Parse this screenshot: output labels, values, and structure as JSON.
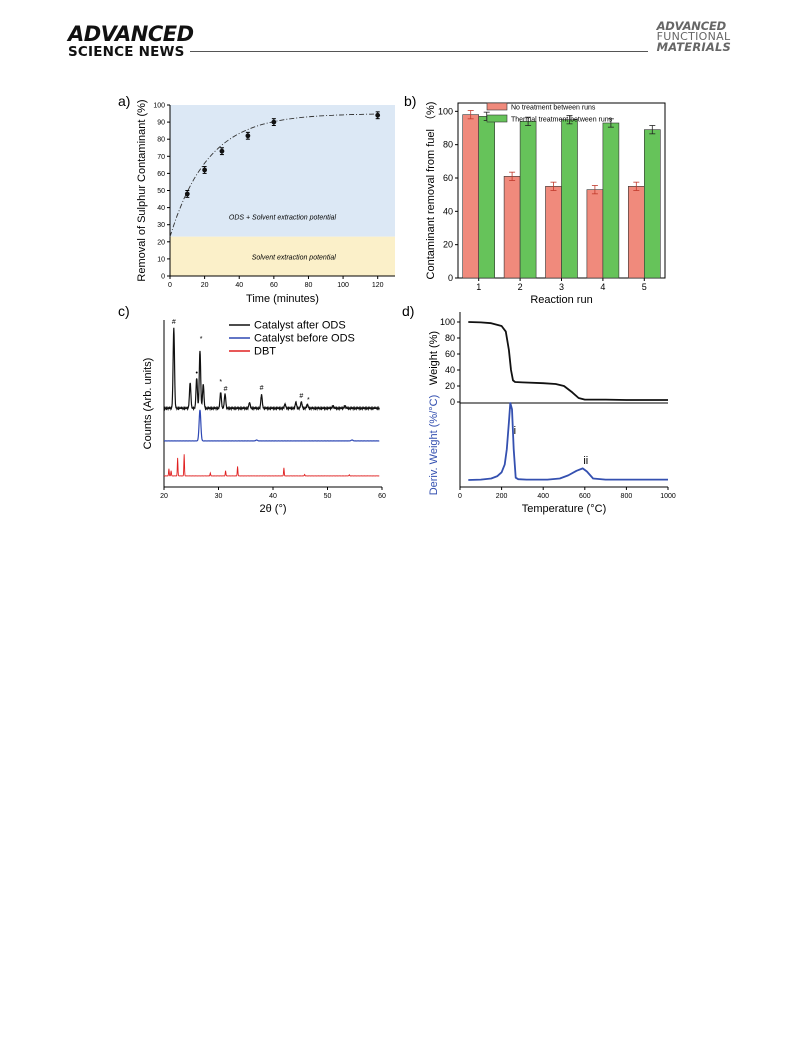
{
  "header": {
    "journal_left_line1": "ADVANCED",
    "journal_left_line2": "SCIENCE NEWS",
    "journal_right_line1": "ADVANCED",
    "journal_right_line2": "FUNCTIONAL",
    "journal_right_line3": "MATERIALS"
  },
  "chart_data": [
    {
      "panel": "a)",
      "type": "scatter",
      "xlabel": "Time (minutes)",
      "ylabel": "Removal of Sulphur Contaminant (%)",
      "xlim": [
        0,
        130
      ],
      "ylim": [
        0,
        100
      ],
      "xticks": [
        0,
        20,
        40,
        60,
        80,
        100,
        120
      ],
      "yticks": [
        0,
        10,
        20,
        30,
        40,
        50,
        60,
        70,
        80,
        90,
        100
      ],
      "x": [
        10,
        20,
        30,
        45,
        60,
        120
      ],
      "y": [
        48,
        62,
        73,
        82,
        90,
        94
      ],
      "err": [
        2,
        2,
        2,
        2,
        2,
        2
      ],
      "fit_curve": "dash-dot",
      "regions": [
        {
          "label": "ODS + Solvent extraction potential",
          "y_from": 23,
          "y_to": 100,
          "color": "#dce8f5"
        },
        {
          "label": "Solvent extraction potential",
          "y_from": 0,
          "y_to": 23,
          "color": "#fbf0c9"
        }
      ]
    },
    {
      "panel": "b)",
      "type": "bar",
      "xlabel": "Reaction run",
      "ylabel": "Contaminant removal from fuel （%)",
      "categories": [
        "1",
        "2",
        "3",
        "4",
        "5"
      ],
      "ylim": [
        0,
        105
      ],
      "yticks": [
        0,
        20,
        40,
        60,
        80,
        100
      ],
      "series": [
        {
          "name": "No treatment between runs",
          "color": "#f08a7c",
          "values": [
            98,
            61,
            55,
            53,
            55
          ],
          "err": [
            2.5,
            2.5,
            2.5,
            2.5,
            2.5
          ]
        },
        {
          "name": "Thermal treatment between runs",
          "color": "#66c35a",
          "values": [
            97,
            94,
            95,
            93,
            89
          ],
          "err": [
            2.5,
            2.5,
            2.5,
            2.5,
            2.5
          ]
        }
      ],
      "legend": "top"
    },
    {
      "panel": "c)",
      "type": "line",
      "xlabel": "2θ (°)",
      "ylabel": "Counts (Arb. units)",
      "xlim": [
        20,
        60
      ],
      "xticks": [
        20,
        30,
        40,
        50,
        60
      ],
      "series": [
        {
          "name": "Catalyst after ODS",
          "color": "#111111",
          "peaks": [
            [
              21.8,
              1.0
            ],
            [
              24.8,
              0.32
            ],
            [
              26.0,
              0.38
            ],
            [
              26.6,
              0.72
            ],
            [
              27.2,
              0.3
            ],
            [
              30.4,
              0.2
            ],
            [
              31.2,
              0.18
            ],
            [
              35.7,
              0.07
            ],
            [
              37.9,
              0.17
            ],
            [
              42.2,
              0.05
            ],
            [
              44.2,
              0.07
            ],
            [
              45.2,
              0.08
            ],
            [
              46.3,
              0.05
            ],
            [
              51.0,
              0.03
            ],
            [
              53.2,
              0.03
            ]
          ]
        },
        {
          "name": "Catalyst before ODS",
          "color": "#2e48b4",
          "peaks": [
            [
              26.6,
              1.0
            ],
            [
              37.0,
              0.03
            ],
            [
              54.5,
              0.03
            ]
          ]
        },
        {
          "name": "DBT",
          "color": "#e02020",
          "peaks": [
            [
              20.9,
              0.25
            ],
            [
              21.3,
              0.18
            ],
            [
              22.5,
              0.62
            ],
            [
              23.7,
              0.75
            ],
            [
              28.5,
              0.1
            ],
            [
              31.3,
              0.18
            ],
            [
              33.5,
              0.33
            ],
            [
              42.0,
              0.28
            ],
            [
              45.8,
              0.05
            ],
            [
              54.0,
              0.04
            ]
          ]
        }
      ],
      "annotations": [
        {
          "text": "#",
          "x": 21.8
        },
        {
          "text": "*",
          "x": 26.8
        },
        {
          "text": "•",
          "x": 26.0
        },
        {
          "text": "*",
          "x": 30.4
        },
        {
          "text": "#",
          "x": 31.3
        },
        {
          "text": "#",
          "x": 37.9
        },
        {
          "text": "#",
          "x": 45.2
        },
        {
          "text": "*",
          "x": 46.5
        }
      ],
      "legend": "top-right"
    },
    {
      "panel": "d)",
      "type": "line",
      "xlabel": "Temperature (°C)",
      "ylabel_top": "Weight (%)",
      "ylabel_bottom": "Deriv. Weight (%/°C)",
      "xlim": [
        0,
        1000
      ],
      "xticks": [
        0,
        200,
        400,
        600,
        800,
        1000
      ],
      "yticks_top": [
        0,
        20,
        40,
        60,
        80,
        100
      ],
      "series": [
        {
          "name": "Weight",
          "color": "#111111",
          "x": [
            40,
            100,
            150,
            200,
            220,
            235,
            245,
            255,
            265,
            300,
            400,
            460,
            500,
            540,
            570,
            600,
            700,
            800,
            1000
          ],
          "y": [
            100,
            99.5,
            98.5,
            95,
            88,
            65,
            40,
            27,
            25,
            24.5,
            23.5,
            22.5,
            20,
            12,
            5,
            3,
            3,
            2.5,
            2.5
          ]
        },
        {
          "name": "Deriv. Weight",
          "color": "#3450b0",
          "x": [
            40,
            100,
            150,
            180,
            200,
            215,
            225,
            235,
            242,
            250,
            258,
            268,
            280,
            320,
            420,
            480,
            520,
            560,
            590,
            610,
            640,
            700,
            1000
          ],
          "y": [
            0,
            0.5,
            2,
            5,
            10,
            20,
            40,
            75,
            100,
            92,
            40,
            3,
            1,
            0.5,
            0.5,
            2,
            6,
            12,
            15,
            11,
            2,
            0.5,
            0.5
          ]
        }
      ],
      "annotations": [
        {
          "text": "i",
          "x": 255
        },
        {
          "text": "ii",
          "x": 600
        }
      ]
    }
  ]
}
